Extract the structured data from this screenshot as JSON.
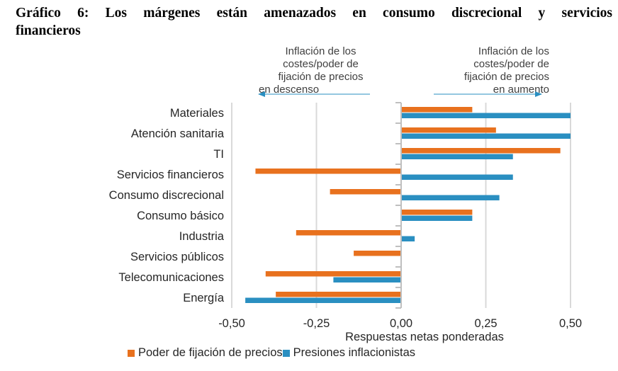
{
  "title_line1": "Gráfico 6: Los márgenes están amenazados en consumo discrecional y servicios",
  "title_line2": "financieros",
  "annotations": {
    "left": [
      "Inflación de los",
      "costes/poder de",
      "fijación de precios",
      "en descenso"
    ],
    "right": [
      "Inflación de los",
      "costes/poder de",
      "fijación de precios",
      "en aumento"
    ]
  },
  "colors": {
    "orange": "#E8711E",
    "blue": "#2A8FC1",
    "grid": "#d9d9d9",
    "axis": "#bfbfbf",
    "arrow": "#2A8FC1"
  },
  "chart_data": {
    "type": "bar",
    "orientation": "horizontal",
    "title": "Gráfico 6: Los márgenes están amenazados en consumo discrecional y servicios financieros",
    "xlabel": "Respuestas netas ponderadas",
    "ylabel": "",
    "xlim": [
      -0.5,
      0.5
    ],
    "xticks": [
      -0.5,
      -0.25,
      0,
      0.25,
      0.5
    ],
    "xtick_labels": [
      "-0,50",
      "-0,25",
      "0,00",
      "0,25",
      "0,50"
    ],
    "grid": "vertical",
    "legend_position": "bottom",
    "categories": [
      "Materiales",
      "Atención sanitaria",
      "TI",
      "Servicios financieros",
      "Consumo discrecional",
      "Consumo básico",
      "Industria",
      "Servicios públicos",
      "Telecomunicaciones",
      "Energía"
    ],
    "series": [
      {
        "name": "Poder de fijación de precios",
        "color": "#E8711E",
        "values": [
          0.21,
          0.28,
          0.47,
          -0.43,
          -0.21,
          0.21,
          -0.31,
          -0.14,
          -0.4,
          -0.37
        ]
      },
      {
        "name": "Presiones inflacionistas",
        "color": "#2A8FC1",
        "values": [
          0.5,
          0.5,
          0.33,
          0.33,
          0.29,
          0.21,
          0.04,
          0.0,
          -0.2,
          -0.46
        ]
      }
    ]
  }
}
